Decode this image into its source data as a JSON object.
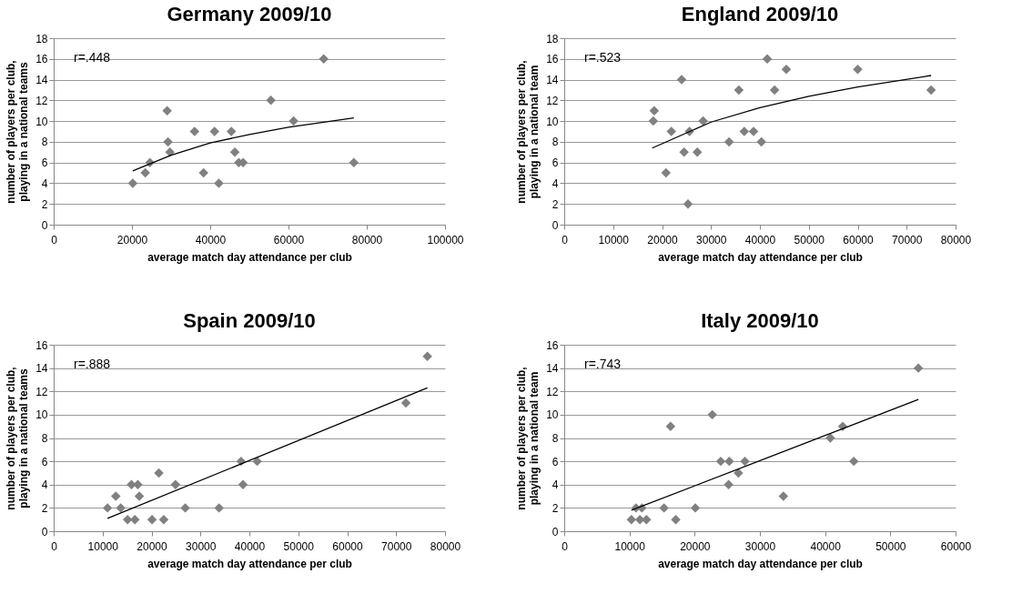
{
  "chart_data": [
    {
      "type": "scatter",
      "title": "Germany 2009/10",
      "xlabel": "average match day attendance per club",
      "ylabel": "number of players per club,\nplaying in a national teams",
      "annotations": [
        "r=.448"
      ],
      "xlim": [
        0,
        100000
      ],
      "xticks": [
        0,
        20000,
        40000,
        60000,
        80000,
        100000
      ],
      "ylim": [
        0,
        18
      ],
      "yticks": [
        0,
        2,
        4,
        6,
        8,
        10,
        12,
        14,
        16,
        18
      ],
      "grid": "y",
      "series": [
        {
          "type": "scatter",
          "marker": "diamond",
          "color": "#808080",
          "x": [
            20200,
            23400,
            24600,
            29000,
            29200,
            29700,
            36000,
            38300,
            41100,
            42200,
            45400,
            46300,
            47300,
            48400,
            55500,
            61300,
            69000,
            76700
          ],
          "values": [
            4,
            5,
            6,
            11,
            8,
            7,
            9,
            5,
            9,
            4,
            9,
            7,
            6,
            6,
            12,
            10,
            16,
            6
          ]
        },
        {
          "type": "line",
          "color": "#000000",
          "x": [
            20200,
            30000,
            40000,
            50000,
            60000,
            76700
          ],
          "values": [
            5.2,
            6.7,
            7.9,
            8.7,
            9.4,
            10.3
          ]
        }
      ]
    },
    {
      "type": "scatter",
      "title": "England 2009/10",
      "xlabel": "average match day attendance per club",
      "ylabel": "number of players per club,\nplaying in a national team",
      "annotations": [
        "r=.523"
      ],
      "xlim": [
        0,
        80000
      ],
      "xticks": [
        0,
        10000,
        20000,
        30000,
        40000,
        50000,
        60000,
        70000,
        80000
      ],
      "ylim": [
        0,
        18
      ],
      "yticks": [
        0,
        2,
        4,
        6,
        8,
        10,
        12,
        14,
        16,
        18
      ],
      "grid": "y",
      "series": [
        {
          "type": "scatter",
          "marker": "diamond",
          "color": "#808080",
          "x": [
            18200,
            18400,
            20800,
            21900,
            24000,
            24500,
            25300,
            25600,
            27200,
            28400,
            33700,
            35700,
            36800,
            38700,
            40300,
            41500,
            43000,
            45400,
            60000,
            75000
          ],
          "values": [
            10,
            11,
            5,
            9,
            14,
            7,
            2,
            9,
            7,
            10,
            8,
            13,
            9,
            9,
            8,
            16,
            13,
            15,
            15,
            13
          ]
        },
        {
          "type": "line",
          "color": "#000000",
          "x": [
            18000,
            30000,
            40000,
            50000,
            60000,
            75000
          ],
          "values": [
            7.4,
            9.9,
            11.3,
            12.4,
            13.3,
            14.4
          ]
        }
      ]
    },
    {
      "type": "scatter",
      "title": "Spain 2009/10",
      "xlabel": "average match day attendance per club",
      "ylabel": "number of players per club,\nplaying in a national teams",
      "annotations": [
        "r=.888"
      ],
      "xlim": [
        0,
        80000
      ],
      "xticks": [
        0,
        10000,
        20000,
        30000,
        40000,
        50000,
        60000,
        70000,
        80000
      ],
      "ylim": [
        0,
        16
      ],
      "yticks": [
        0,
        2,
        4,
        6,
        8,
        10,
        12,
        14,
        16
      ],
      "grid": "y",
      "series": [
        {
          "type": "scatter",
          "marker": "diamond",
          "color": "#808080",
          "x": [
            11000,
            12700,
            13700,
            15100,
            15900,
            16600,
            17200,
            17500,
            20100,
            21500,
            22500,
            24900,
            26900,
            33800,
            38300,
            38700,
            41600,
            72000,
            76400
          ],
          "values": [
            2,
            3,
            2,
            1,
            4,
            1,
            4,
            3,
            1,
            5,
            1,
            4,
            2,
            2,
            6,
            4,
            6,
            11,
            15
          ]
        },
        {
          "type": "line",
          "color": "#000000",
          "x": [
            11000,
            76400
          ],
          "values": [
            1.1,
            12.3
          ]
        }
      ]
    },
    {
      "type": "scatter",
      "title": "Italy 2009/10",
      "xlabel": "average match day attendance per club",
      "ylabel": "number of players per club,\nplaying in a national team",
      "annotations": [
        "r=.743"
      ],
      "xlim": [
        0,
        60000
      ],
      "xticks": [
        0,
        10000,
        20000,
        30000,
        40000,
        50000,
        60000
      ],
      "ylim": [
        0,
        16
      ],
      "yticks": [
        0,
        2,
        4,
        6,
        8,
        10,
        12,
        14,
        16
      ],
      "grid": "y",
      "series": [
        {
          "type": "scatter",
          "marker": "diamond",
          "color": "#808080",
          "x": [
            10300,
            11000,
            11600,
            11900,
            12600,
            15300,
            16300,
            17100,
            20100,
            22700,
            24000,
            25300,
            25200,
            26700,
            27700,
            33600,
            40800,
            42700,
            44400,
            54300
          ],
          "values": [
            1,
            2,
            1,
            2,
            1,
            2,
            9,
            1,
            2,
            10,
            6,
            6,
            4,
            5,
            6,
            3,
            8,
            9,
            6,
            14
          ]
        },
        {
          "type": "line",
          "color": "#000000",
          "x": [
            10300,
            54300
          ],
          "values": [
            1.8,
            11.3
          ]
        }
      ]
    }
  ]
}
